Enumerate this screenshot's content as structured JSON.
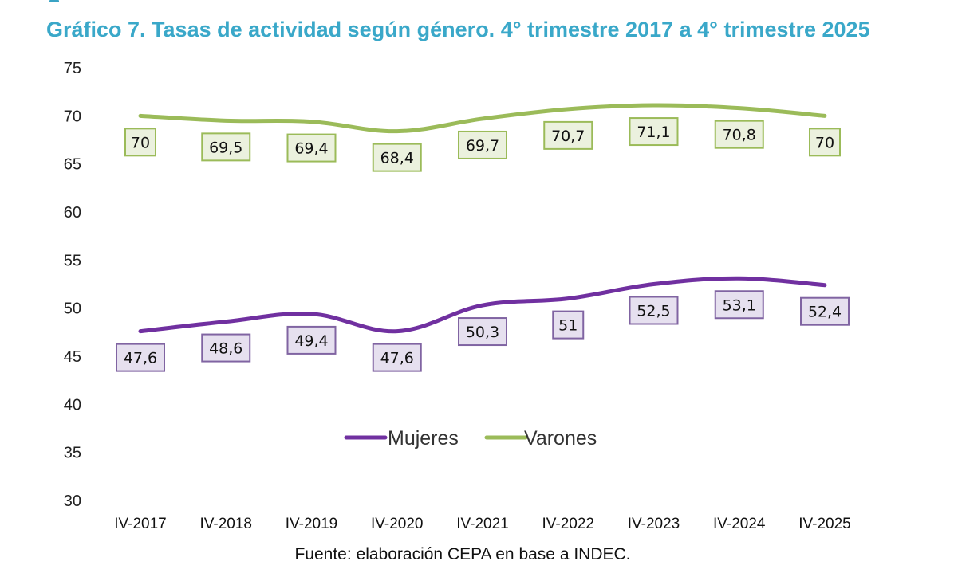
{
  "title": "Gráfico 7. Tasas de actividad según género. 4° trimestre 2017 a 4° trimestre 2025",
  "source": "Fuente: elaboración CEPA en base a INDEC.",
  "chart_data": {
    "type": "line",
    "title": "Gráfico 7. Tasas de actividad según género. 4° trimestre 2017 a 4° trimestre 2025",
    "xlabel": "",
    "ylabel": "",
    "categories": [
      "IV-2017",
      "IV-2018",
      "IV-2019",
      "IV-2020",
      "IV-2021",
      "IV-2022",
      "IV-2023",
      "IV-2024",
      "IV-2025"
    ],
    "ylim": [
      30,
      75
    ],
    "yticks": [
      30,
      35,
      40,
      45,
      50,
      55,
      60,
      65,
      70,
      75
    ],
    "grid": false,
    "smooth": true,
    "legend_position": "center",
    "series": [
      {
        "name": "Mujeres",
        "color": "#7030a0",
        "label_fill": "#e6e0ef",
        "label_border": "#8064a2",
        "values": [
          47.6,
          48.6,
          49.4,
          47.6,
          50.3,
          51,
          52.5,
          53.1,
          52.4
        ],
        "labels": [
          "47,6",
          "48,6",
          "49,4",
          "47,6",
          "50,3",
          "51",
          "52,5",
          "53,1",
          "52,4"
        ]
      },
      {
        "name": "Varones",
        "color": "#9bbb59",
        "label_fill": "#ebf1de",
        "label_border": "#9bbb59",
        "values": [
          70,
          69.5,
          69.4,
          68.4,
          69.7,
          70.7,
          71.1,
          70.8,
          70
        ],
        "labels": [
          "70",
          "69,5",
          "69,4",
          "68,4",
          "69,7",
          "70,7",
          "71,1",
          "70,8",
          "70"
        ]
      }
    ]
  }
}
